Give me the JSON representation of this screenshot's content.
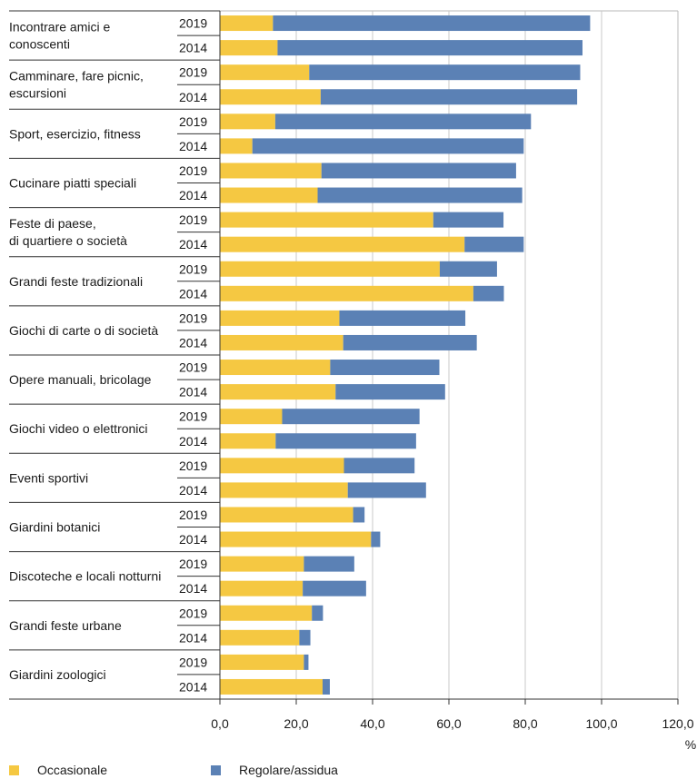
{
  "chart_data": {
    "type": "bar",
    "orientation": "horizontal",
    "stacked": true,
    "years": [
      "2019",
      "2014"
    ],
    "categories": [
      "Incontrare amici e conoscenti",
      "Camminare, fare picnic, escursioni",
      "Sport, esercizio, fitness",
      "Cucinare piatti speciali",
      "Feste di paese, di quartiere o società",
      "Grandi feste tradizionali",
      "Giochi di carte o di società",
      "Opere manuali, bricolage",
      "Giochi video o elettronici",
      "Eventi sportivi",
      "Giardini botanici",
      "Discoteche e locali notturni",
      "Grandi feste urbane",
      "Giardini zoologici"
    ],
    "category_lines": [
      [
        "Incontrare amici e",
        "conoscenti"
      ],
      [
        "Camminare, fare picnic,",
        "escursioni"
      ],
      [
        "Sport, esercizio, fitness"
      ],
      [
        "Cucinare piatti speciali"
      ],
      [
        "Feste di paese,",
        "di quartiere o società"
      ],
      [
        "Grandi feste tradizionali"
      ],
      [
        "Giochi di carte o di società"
      ],
      [
        "Opere manuali, bricolage"
      ],
      [
        "Giochi video o elettronici"
      ],
      [
        "Eventi sportivi"
      ],
      [
        "Giardini botanici"
      ],
      [
        "Discoteche e locali notturni"
      ],
      [
        "Grandi feste urbane"
      ],
      [
        "Giardini zoologici"
      ]
    ],
    "series": [
      {
        "name": "Occasionale",
        "color": "#f5c842",
        "values_2019": [
          13.9,
          23.4,
          14.5,
          26.6,
          55.9,
          57.6,
          31.3,
          28.9,
          16.3,
          32.5,
          34.9,
          22.0,
          24.1,
          22.0
        ],
        "values_2014": [
          15.1,
          26.4,
          8.5,
          25.6,
          64.1,
          66.4,
          32.3,
          30.3,
          14.6,
          33.5,
          39.6,
          21.7,
          20.8,
          26.9
        ]
      },
      {
        "name": "Regolare/assidua",
        "color": "#5b81b5",
        "values_2019": [
          83.1,
          71.0,
          67.0,
          51.0,
          18.4,
          15.0,
          33.0,
          28.6,
          36.0,
          18.5,
          3.0,
          13.2,
          2.9,
          1.2
        ],
        "values_2014": [
          79.9,
          67.2,
          71.1,
          53.6,
          15.5,
          8.0,
          35.0,
          28.7,
          36.8,
          20.5,
          2.4,
          16.6,
          2.9,
          1.9
        ]
      }
    ],
    "xlim": [
      0,
      120
    ],
    "xticks": [
      "0,0",
      "20,0",
      "40,0",
      "60,0",
      "80,0",
      "100,0",
      "120,0"
    ],
    "xlabel": "%",
    "grid": "vertical",
    "legend_position": "bottom"
  }
}
